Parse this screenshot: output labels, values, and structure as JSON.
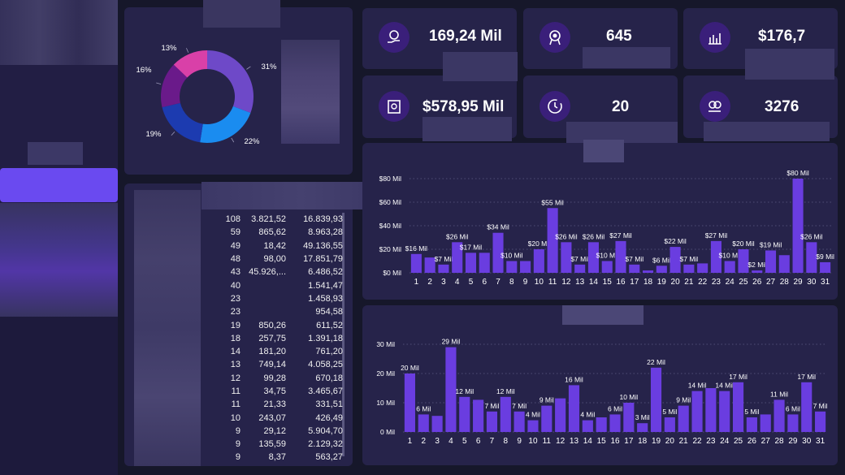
{
  "kpis": [
    {
      "value": "169,24 Mil",
      "icon": "hand-money-icon"
    },
    {
      "value": "645",
      "icon": "award-ribbon-icon"
    },
    {
      "value": "$176,7",
      "icon": "building-chart-icon"
    },
    {
      "value": "$578,95 Mil",
      "icon": "cash-register-icon"
    },
    {
      "value": "20",
      "icon": "clock-icon"
    },
    {
      "value": "3276",
      "icon": "coins-hand-icon"
    }
  ],
  "table": {
    "rows": [
      [
        "108",
        "3.821,52",
        "16.839,93"
      ],
      [
        "59",
        "865,62",
        "8.963,28"
      ],
      [
        "49",
        "18,42",
        "49.136,55"
      ],
      [
        "48",
        "98,00",
        "17.851,79"
      ],
      [
        "43",
        "45.926,...",
        "6.486,52"
      ],
      [
        "40",
        "",
        "1.541,47"
      ],
      [
        "23",
        "",
        "1.458,93"
      ],
      [
        "23",
        "",
        "954,58"
      ],
      [
        "19",
        "850,26",
        "611,52"
      ],
      [
        "18",
        "257,75",
        "1.391,18"
      ],
      [
        "14",
        "181,20",
        "761,20"
      ],
      [
        "13",
        "749,14",
        "4.058,25"
      ],
      [
        "12",
        "99,28",
        "670,18"
      ],
      [
        "11",
        "34,75",
        "3.465,67"
      ],
      [
        "11",
        "21,33",
        "331,51"
      ],
      [
        "10",
        "243,07",
        "426,49"
      ],
      [
        "9",
        "29,12",
        "5.904,70"
      ],
      [
        "9",
        "135,59",
        "2.129,32"
      ],
      [
        "9",
        "8,37",
        "563,27"
      ]
    ]
  },
  "chart_data": [
    {
      "type": "pie",
      "variant": "donut",
      "slices": [
        {
          "label": "31%",
          "value": 31,
          "color": "#6e49c8"
        },
        {
          "label": "22%",
          "value": 22,
          "color": "#1a8cf0"
        },
        {
          "label": "19%",
          "value": 19,
          "color": "#1c3bb0"
        },
        {
          "label": "16%",
          "value": 16,
          "color": "#6a1a8a"
        },
        {
          "label": "13%",
          "value": 13,
          "color": "#d940a8"
        }
      ]
    },
    {
      "type": "bar",
      "categories": [
        "1",
        "2",
        "3",
        "4",
        "5",
        "6",
        "7",
        "8",
        "9",
        "10",
        "11",
        "12",
        "13",
        "14",
        "15",
        "16",
        "17",
        "18",
        "19",
        "20",
        "21",
        "22",
        "23",
        "24",
        "25",
        "26",
        "27",
        "28",
        "29",
        "30",
        "31"
      ],
      "values": [
        16,
        13,
        7,
        26,
        17,
        17,
        34,
        10,
        10,
        20,
        55,
        26,
        7,
        26,
        10,
        27,
        7,
        2,
        6,
        22,
        7,
        8,
        27,
        10,
        20,
        2,
        19,
        15,
        80,
        26,
        9
      ],
      "data_labels": [
        "$16 Mil",
        "",
        "$7 Mil",
        "$26 Mil",
        "$17 Mil",
        "",
        "$34 Mil",
        "$10 Mil",
        "",
        "$20 Mil",
        "$55 Mil",
        "$26 Mil",
        "$7 Mil",
        "$26 Mil",
        "$10 Mil",
        "$27 Mil",
        "$7 Mil",
        "",
        "$6 Mil",
        "$22 Mil",
        "$7 Mil",
        "",
        "$27 Mil",
        "$10 Mil",
        "$20 Mil",
        "$2 Mil",
        "$19 Mil",
        "",
        "$80 Mil",
        "$26 Mil",
        "$9 Mil"
      ],
      "y_ticks": [
        "$0 Mil",
        "$20 Mil",
        "$40 Mil",
        "$60 Mil",
        "$80 Mil"
      ],
      "ylim": [
        0,
        80
      ],
      "bar_color": "#6a3de0",
      "grid": true
    },
    {
      "type": "bar",
      "categories": [
        "1",
        "2",
        "3",
        "4",
        "5",
        "6",
        "7",
        "8",
        "9",
        "10",
        "11",
        "12",
        "13",
        "14",
        "15",
        "16",
        "17",
        "18",
        "19",
        "20",
        "21",
        "22",
        "23",
        "24",
        "25",
        "26",
        "27",
        "28",
        "29",
        "30",
        "31"
      ],
      "values": [
        20,
        6,
        5.5,
        29,
        12,
        11,
        7,
        12,
        7,
        4,
        9,
        11.5,
        16,
        4,
        5,
        6,
        10,
        3,
        22,
        5,
        9,
        14,
        15,
        14,
        17,
        5,
        6,
        11,
        6,
        17,
        7
      ],
      "data_labels": [
        "20 Mil",
        "6 Mil",
        "",
        "29 Mil",
        "12 Mil",
        "",
        "7 Mil",
        "12 Mil",
        "7 Mil",
        "4 Mil",
        "9 Mil",
        "",
        "16 Mil",
        "4 Mil",
        "",
        "6 Mil",
        "10 Mil",
        "3 Mil",
        "22 Mil",
        "5 Mil",
        "9 Mil",
        "14 Mil",
        "",
        "14 Mil",
        "17 Mil",
        "5 Mil",
        "",
        "11 Mil",
        "6 Mil",
        "17 Mil",
        "7 Mil"
      ],
      "y_ticks": [
        "0 Mil",
        "10 Mil",
        "20 Mil",
        "30 Mil"
      ],
      "ylim": [
        0,
        30
      ],
      "bar_color": "#6a3de0",
      "grid": true
    }
  ]
}
